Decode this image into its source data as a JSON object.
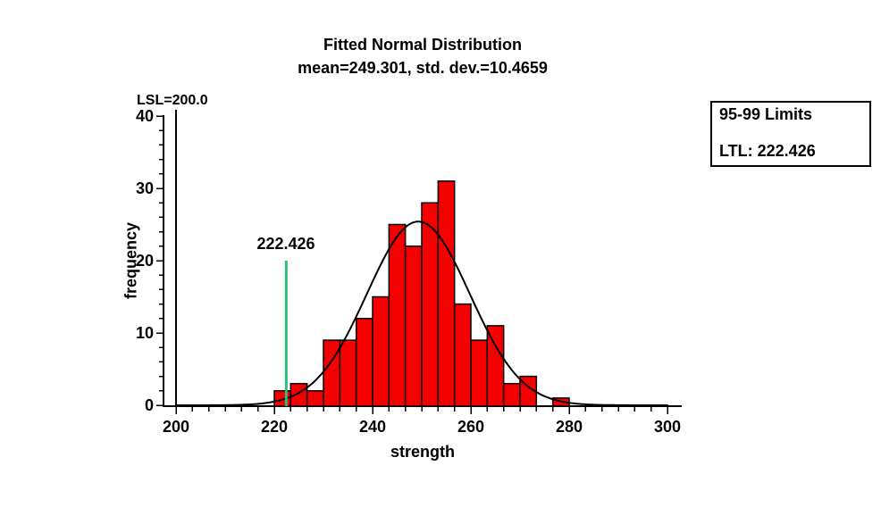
{
  "chart_data": {
    "type": "bar",
    "subtype": "histogram-with-fitted-normal-curve",
    "title": "Fitted Normal Distribution",
    "subtitle": "mean=249.301, std. dev.=10.4659",
    "xlabel": "strength",
    "ylabel": "frequency",
    "xlim": [
      200,
      300
    ],
    "ylim": [
      0,
      40
    ],
    "x_major_ticks": [
      200,
      220,
      240,
      260,
      280,
      300
    ],
    "y_major_ticks": [
      0,
      10,
      20,
      30,
      40
    ],
    "x_minor_step": 3.3333333,
    "y_minor_step": 2,
    "grid": "off",
    "histogram": {
      "bin_start": 220,
      "bin_width": 3.3333333,
      "frequencies": [
        2,
        3,
        2,
        9,
        9,
        12,
        15,
        25,
        22,
        28,
        31,
        14,
        9,
        11,
        3,
        4,
        0,
        1
      ]
    },
    "normal_fit": {
      "mean": 249.301,
      "std_dev": 10.4659
    },
    "lsl": {
      "label": "LSL=200.0",
      "value": 200.0
    },
    "ltl_line": {
      "label": "222.426",
      "value": 222.426,
      "top_value": 20
    },
    "legend": {
      "title": "95-99 Limits",
      "entry": "LTL: 222.426",
      "position": "right-top"
    },
    "colors": {
      "bar_fill": "#f40000",
      "bar_stroke": "#000000",
      "curve": "#000000",
      "lsl_line": "#000000",
      "ltl_line": "#2ebe73",
      "text": "#000000",
      "background": "#ffffff"
    }
  }
}
